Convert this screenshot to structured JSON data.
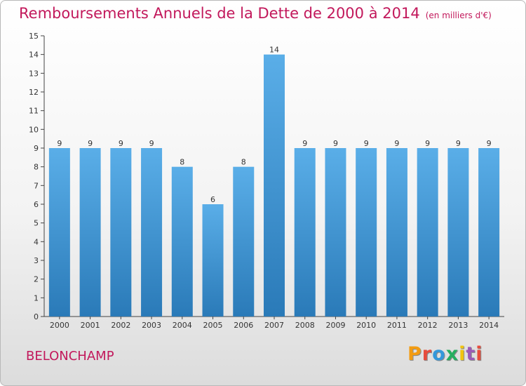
{
  "header": {
    "title": "Remboursements Annuels de la Dette de 2000 à 2014",
    "unit": "(en milliers d'€)"
  },
  "footer": {
    "commune": "BELONCHAMP",
    "brand": "Proxiti",
    "brand_colors": [
      "#f39c12",
      "#e74c3c",
      "#3498db",
      "#27ae60",
      "#f1c40f",
      "#9b59b6",
      "#e74c3c"
    ]
  },
  "chart_data": {
    "type": "bar",
    "title": "Remboursements Annuels de la Dette de 2000 à 2014",
    "categories": [
      "2000",
      "2001",
      "2002",
      "2003",
      "2004",
      "2005",
      "2006",
      "2007",
      "2008",
      "2009",
      "2010",
      "2011",
      "2012",
      "2013",
      "2014"
    ],
    "values": [
      9,
      9,
      9,
      9,
      8,
      6,
      8,
      14,
      9,
      9,
      9,
      9,
      9,
      9,
      9
    ],
    "ylim": [
      0,
      15
    ],
    "yticks": [
      "0",
      "1",
      "2",
      "3",
      "4",
      "5",
      "6",
      "7",
      "8",
      "9",
      "10",
      "11",
      "12",
      "13",
      "14",
      "15"
    ],
    "grid": false,
    "colors": {
      "bar_top": "#5aaee8",
      "bar_bottom": "#2a7ab8",
      "text": "#c2185b"
    }
  }
}
